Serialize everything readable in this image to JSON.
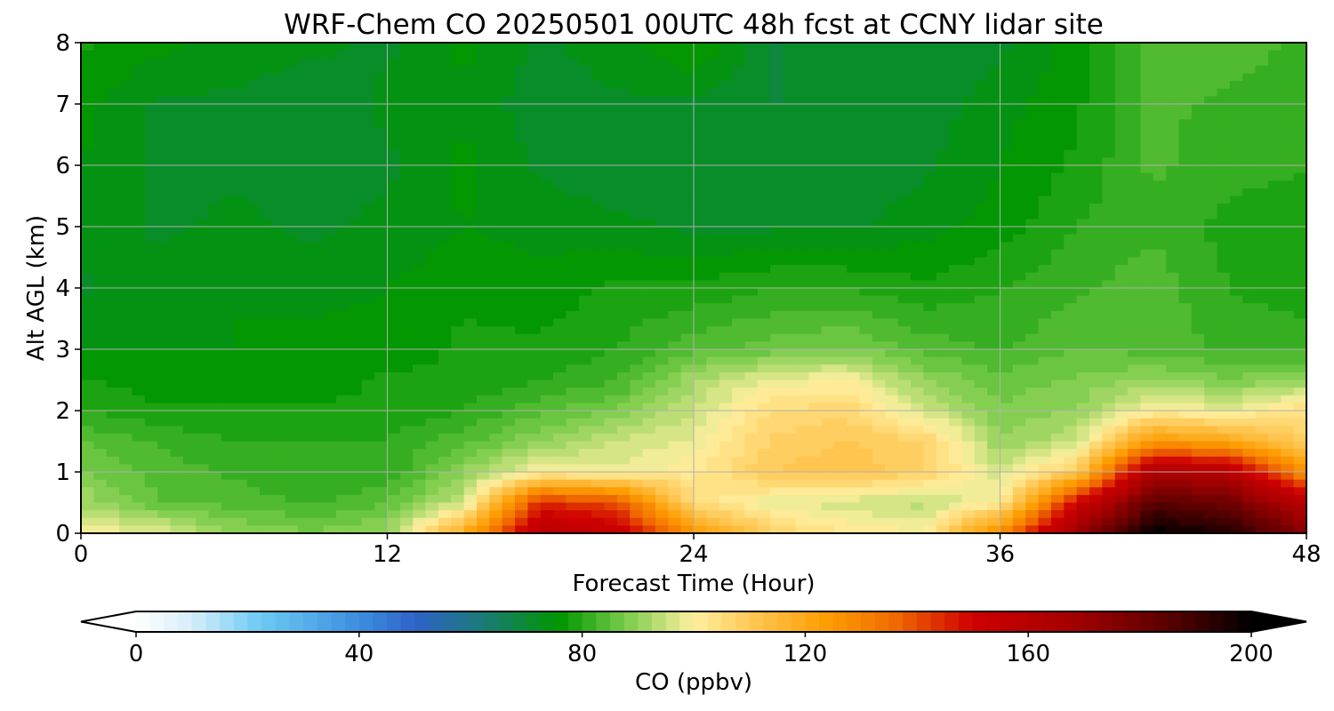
{
  "chart_data": {
    "type": "heatmap",
    "title": "WRF-Chem CO  20250501 00UTC 48h fcst at CCNY lidar site",
    "xlabel": "Forecast Time (Hour)",
    "ylabel": "Alt AGL (km)",
    "xlim": [
      0,
      48
    ],
    "ylim": [
      0,
      8
    ],
    "xticks": [
      0,
      12,
      24,
      36,
      48
    ],
    "yticks": [
      0,
      1,
      2,
      3,
      4,
      5,
      6,
      7,
      8
    ],
    "grid": true,
    "x_hours": [
      0,
      3,
      6,
      9,
      12,
      15,
      18,
      21,
      24,
      27,
      30,
      33,
      36,
      39,
      42,
      45,
      48
    ],
    "z_km": [
      0,
      0.5,
      1,
      1.5,
      2,
      2.5,
      3,
      4,
      5,
      6,
      7,
      8
    ],
    "co_ppbv": [
      [
        100,
        98,
        90,
        88,
        90,
        120,
        160,
        155,
        125,
        108,
        102,
        100,
        130,
        170,
        200,
        195,
        175
      ],
      [
        92,
        85,
        84,
        82,
        85,
        95,
        145,
        140,
        105,
        98,
        96,
        94,
        100,
        150,
        185,
        180,
        160
      ],
      [
        88,
        84,
        82,
        80,
        80,
        90,
        100,
        98,
        102,
        110,
        112,
        108,
        96,
        110,
        165,
        160,
        125
      ],
      [
        85,
        82,
        80,
        80,
        80,
        84,
        90,
        95,
        98,
        108,
        110,
        108,
        90,
        95,
        125,
        120,
        108
      ],
      [
        80,
        78,
        78,
        78,
        78,
        80,
        84,
        88,
        95,
        105,
        107,
        96,
        88,
        90,
        100,
        98,
        105
      ],
      [
        78,
        76,
        76,
        76,
        78,
        78,
        80,
        82,
        92,
        98,
        100,
        90,
        86,
        88,
        90,
        88,
        90
      ],
      [
        75,
        75,
        75,
        76,
        76,
        78,
        78,
        80,
        84,
        86,
        88,
        84,
        82,
        85,
        84,
        82,
        82
      ],
      [
        72,
        74,
        75,
        74,
        75,
        77,
        76,
        78,
        78,
        80,
        80,
        78,
        80,
        82,
        84,
        80,
        78
      ],
      [
        74,
        72,
        73,
        72,
        73,
        75,
        74,
        73,
        72,
        72,
        72,
        74,
        76,
        80,
        82,
        79,
        79
      ],
      [
        75,
        72,
        72,
        72,
        72,
        76,
        72,
        71,
        72,
        71,
        70,
        72,
        75,
        78,
        83,
        81,
        80
      ],
      [
        76,
        72,
        72,
        71,
        73,
        74,
        71,
        72,
        72,
        70,
        70,
        71,
        74,
        77,
        83,
        82,
        80
      ],
      [
        78,
        76,
        74,
        73,
        72,
        76,
        72,
        74,
        78,
        70,
        70,
        70,
        72,
        76,
        84,
        84,
        82
      ]
    ],
    "colorbar": {
      "label": "CO  (ppbv)",
      "min": 0,
      "max": 200,
      "step": 2.5,
      "ticks": [
        0,
        40,
        80,
        120,
        160,
        200
      ],
      "extend": "both",
      "stops": [
        {
          "v": 0,
          "c": "#ffffff"
        },
        {
          "v": 10,
          "c": "#d6eef9"
        },
        {
          "v": 22,
          "c": "#6ecbf4"
        },
        {
          "v": 40,
          "c": "#3d8ee0"
        },
        {
          "v": 50,
          "c": "#2e63c8"
        },
        {
          "v": 62,
          "c": "#1b7a78"
        },
        {
          "v": 76,
          "c": "#009600"
        },
        {
          "v": 88,
          "c": "#7ccd4c"
        },
        {
          "v": 100,
          "c": "#fff0a0"
        },
        {
          "v": 112,
          "c": "#ffc24a"
        },
        {
          "v": 124,
          "c": "#ff9d00"
        },
        {
          "v": 136,
          "c": "#f06a00"
        },
        {
          "v": 150,
          "c": "#cf0000"
        },
        {
          "v": 168,
          "c": "#a40000"
        },
        {
          "v": 185,
          "c": "#5a0000"
        },
        {
          "v": 200,
          "c": "#000000"
        }
      ]
    }
  }
}
